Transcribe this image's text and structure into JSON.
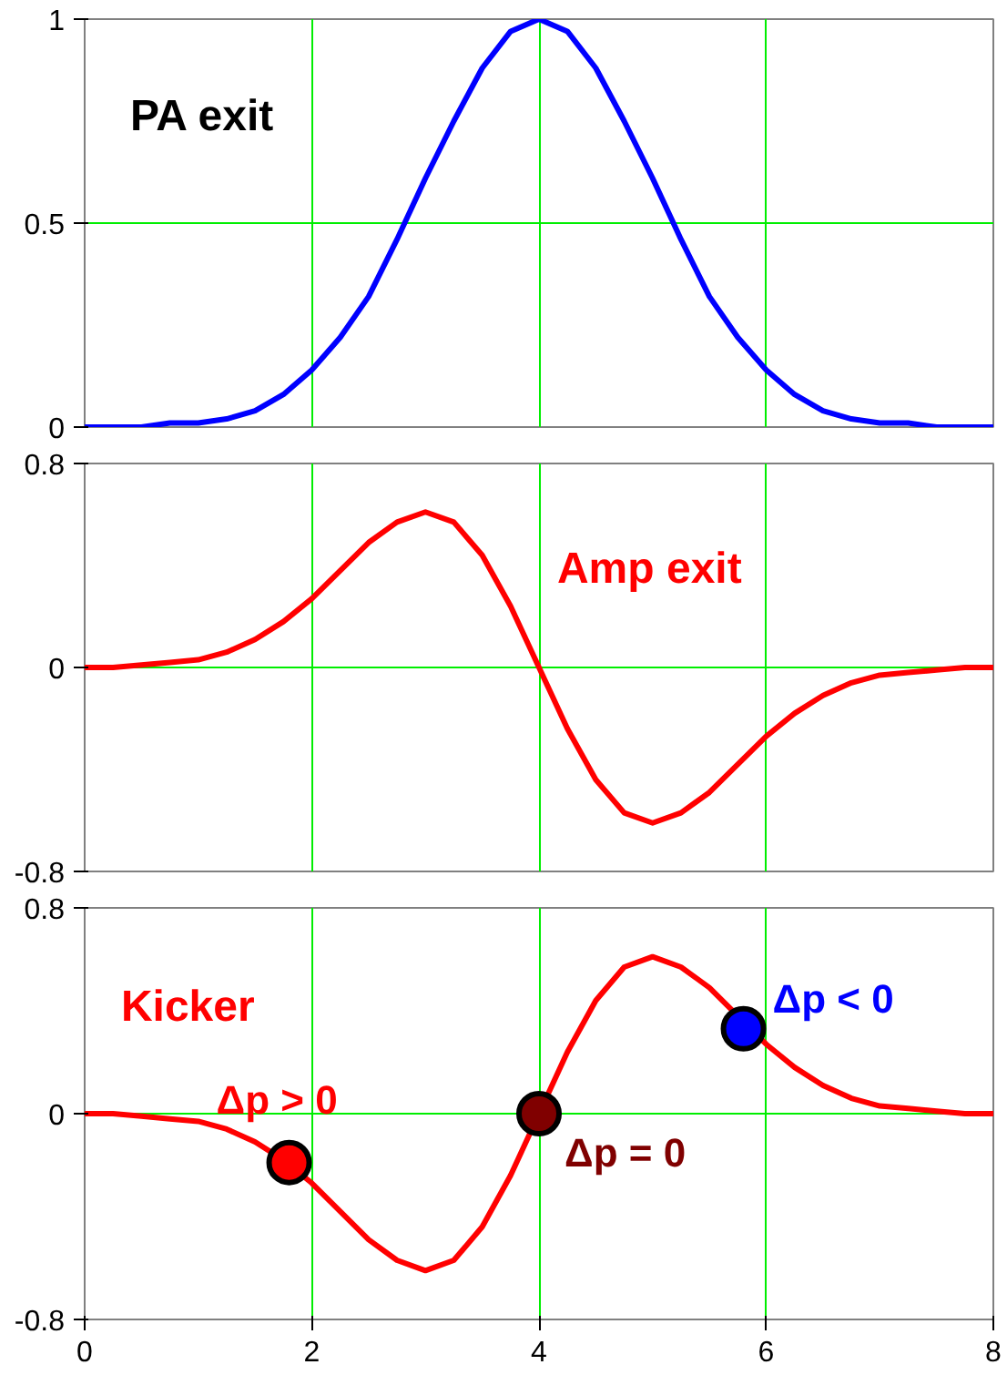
{
  "chart_data": [
    {
      "type": "line",
      "x": [
        0,
        0.25,
        0.5,
        0.75,
        1,
        1.25,
        1.5,
        1.75,
        2,
        2.25,
        2.5,
        2.75,
        3,
        3.25,
        3.5,
        3.75,
        4,
        4.25,
        4.5,
        4.75,
        5,
        5.25,
        5.5,
        5.75,
        6,
        6.25,
        6.5,
        6.75,
        7,
        7.25,
        7.5,
        7.75,
        8
      ],
      "series": [
        {
          "color": "#0000ff",
          "values": [
            0,
            0,
            0,
            0.01,
            0.01,
            0.02,
            0.04,
            0.08,
            0.14,
            0.22,
            0.32,
            0.46,
            0.61,
            0.75,
            0.88,
            0.97,
            1,
            0.97,
            0.88,
            0.75,
            0.61,
            0.46,
            0.32,
            0.22,
            0.14,
            0.08,
            0.04,
            0.02,
            0.01,
            0.01,
            0,
            0,
            0
          ]
        }
      ],
      "xlim": [
        0,
        8
      ],
      "xticks": [
        0,
        2,
        4,
        6,
        8
      ],
      "ylim": [
        0,
        1
      ],
      "yticks": [
        0,
        0.5,
        1
      ],
      "grid": true,
      "tick_labels": "y",
      "line_style": "solid",
      "annotations": [
        "PA exit"
      ]
    },
    {
      "type": "line",
      "x": [
        0,
        0.25,
        0.5,
        0.75,
        1,
        1.25,
        1.5,
        1.75,
        2,
        2.25,
        2.5,
        2.75,
        3,
        3.25,
        3.5,
        3.75,
        4,
        4.25,
        4.5,
        4.75,
        5,
        5.25,
        5.5,
        5.75,
        6,
        6.25,
        6.5,
        6.75,
        7,
        7.25,
        7.5,
        7.75,
        8
      ],
      "series": [
        {
          "color": "#ff0000",
          "values": [
            0,
            0,
            0.01,
            0.02,
            0.03,
            0.06,
            0.11,
            0.18,
            0.27,
            0.38,
            0.49,
            0.57,
            0.61,
            0.57,
            0.44,
            0.24,
            0,
            -0.24,
            -0.44,
            -0.57,
            -0.61,
            -0.57,
            -0.49,
            -0.38,
            -0.27,
            -0.18,
            -0.11,
            -0.06,
            -0.03,
            -0.02,
            -0.01,
            0,
            0
          ]
        }
      ],
      "xlim": [
        0,
        8
      ],
      "xticks": [
        0,
        2,
        4,
        6,
        8
      ],
      "ylim": [
        -0.8,
        0.8
      ],
      "yticks": [
        -0.8,
        0,
        0.8
      ],
      "grid": true,
      "tick_labels": "y",
      "line_style": "solid",
      "annotations": [
        "Amp exit"
      ]
    },
    {
      "type": "line",
      "x": [
        0,
        0.25,
        0.5,
        0.75,
        1,
        1.25,
        1.5,
        1.75,
        2,
        2.25,
        2.5,
        2.75,
        3,
        3.25,
        3.5,
        3.75,
        4,
        4.25,
        4.5,
        4.75,
        5,
        5.25,
        5.5,
        5.75,
        6,
        6.25,
        6.5,
        6.75,
        7,
        7.25,
        7.5,
        7.75,
        8
      ],
      "series": [
        {
          "color": "#ff0000",
          "values": [
            0,
            0,
            -0.01,
            -0.02,
            -0.03,
            -0.06,
            -0.11,
            -0.18,
            -0.27,
            -0.38,
            -0.49,
            -0.57,
            -0.61,
            -0.57,
            -0.44,
            -0.24,
            0,
            0.24,
            0.44,
            0.57,
            0.61,
            0.57,
            0.49,
            0.38,
            0.27,
            0.18,
            0.11,
            0.06,
            0.03,
            0.02,
            0.01,
            0,
            0
          ]
        },
        {
          "type": "scatter",
          "marker": "circle",
          "x": [
            1.8,
            4,
            5.8
          ],
          "colors": [
            "#ff0000",
            "#800000",
            "#0000ff"
          ],
          "values": [
            -0.19,
            0,
            0.33
          ]
        }
      ],
      "xlim": [
        0,
        8
      ],
      "xticks": [
        0,
        2,
        4,
        6,
        8
      ],
      "ylim": [
        -0.8,
        0.8
      ],
      "yticks": [
        -0.8,
        0,
        0.8
      ],
      "grid": true,
      "line_style": "solid",
      "annotations": [
        "Kicker",
        {
          "text": "Δp > 0",
          "x": 1.8,
          "y": -0.19
        },
        {
          "text": "Δp = 0",
          "x": 4,
          "y": 0
        },
        {
          "text": "Δp < 0",
          "x": 5.8,
          "y": 0.33
        }
      ]
    }
  ]
}
